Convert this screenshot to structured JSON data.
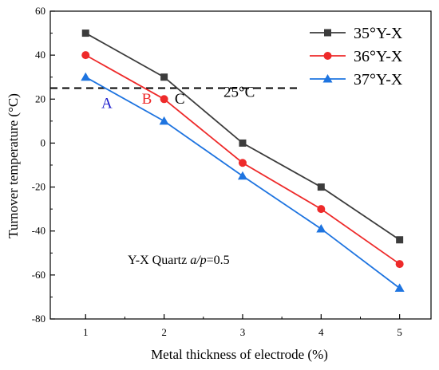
{
  "chart_data": {
    "type": "line",
    "title": "",
    "xlabel": "Metal thickness of electrode (%)",
    "ylabel": "Turnover temperature (°C)",
    "xlim": [
      0.55,
      5.4
    ],
    "ylim": [
      -80,
      60
    ],
    "x": [
      1,
      2,
      3,
      4,
      5
    ],
    "x_ticks": [
      "1",
      "2",
      "3",
      "4",
      "5"
    ],
    "y_ticks": [
      "60",
      "40",
      "20",
      "0",
      "-20",
      "-40",
      "-60",
      "-80"
    ],
    "y_tick_values": [
      60,
      40,
      20,
      0,
      -20,
      -40,
      -60,
      -80
    ],
    "series": [
      {
        "name": "35°Y-X",
        "values": [
          50,
          30,
          0,
          -20,
          -44
        ],
        "color": "#3c3c3c",
        "marker": "square"
      },
      {
        "name": "36°Y-X",
        "values": [
          40,
          20,
          -9,
          -30,
          -55
        ],
        "color": "#ee2a2a",
        "marker": "circle"
      },
      {
        "name": "37°Y-X",
        "values": [
          30,
          10,
          -15,
          -39,
          -66
        ],
        "color": "#1e74e0",
        "marker": "triangle"
      }
    ],
    "reference_line": {
      "y": 25,
      "label": "25°C",
      "style": "dashed",
      "color": "#000000"
    },
    "annotations": [
      {
        "text": "A",
        "x": 1.27,
        "y": 16,
        "color": "#1a1acc"
      },
      {
        "text": "B",
        "x": 1.78,
        "y": 18,
        "color": "#ee2a2a"
      },
      {
        "text": "C",
        "x": 2.2,
        "y": 18,
        "color": "#000000"
      }
    ],
    "note": {
      "prefix": "Y-X Quartz ",
      "italic": "a/p",
      "suffix": "=0.5"
    },
    "legend_position": "top-right",
    "grid": false
  }
}
